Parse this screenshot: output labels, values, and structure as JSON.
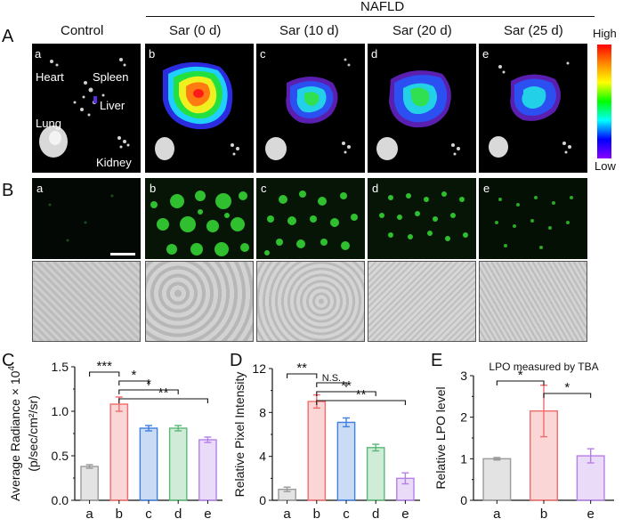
{
  "labels": {
    "panel_a": "A",
    "panel_b": "B",
    "panel_c": "C",
    "panel_d": "D",
    "panel_e": "E",
    "control": "Control",
    "nafld": "NAFLD",
    "groups": [
      "Sar (0 d)",
      "Sar (10 d)",
      "Sar (20 d)",
      "Sar (25 d)"
    ],
    "subpanels": [
      "a",
      "b",
      "c",
      "d",
      "e"
    ],
    "organs": {
      "heart": "Heart",
      "spleen": "Spleen",
      "liver": "Liver",
      "lung": "Lung",
      "kidney": "Kidney"
    },
    "scale_high": "High",
    "scale_low": "Low"
  },
  "colors": {
    "a": "#9a9a9a",
    "b": "#f26b6b",
    "c": "#3f7fe0",
    "d": "#58b878",
    "e": "#b57fe6",
    "colorbar": [
      "#ff0000",
      "#ff8800",
      "#ffff00",
      "#00ff00",
      "#00ffff",
      "#0000ff",
      "#8800ff"
    ]
  },
  "chart_data": [
    {
      "id": "C",
      "type": "bar",
      "categories": [
        "a",
        "b",
        "c",
        "d",
        "e"
      ],
      "values": [
        0.38,
        1.08,
        0.81,
        0.81,
        0.68
      ],
      "errors": [
        0.02,
        0.08,
        0.03,
        0.03,
        0.03
      ],
      "ylabel_line1": "Average Radiance × 10",
      "ylabel_sup": "4",
      "ylabel_line2": "(p/sec/cm²/sr)",
      "yticks": [
        "0.0",
        "0.5",
        "1.0",
        "1.5"
      ],
      "ylim": [
        0,
        1.5
      ],
      "significance": [
        {
          "from": "a",
          "to": "b",
          "text": "***"
        },
        {
          "from": "b",
          "to": "c",
          "text": "*"
        },
        {
          "from": "b",
          "to": "d",
          "text": "*"
        },
        {
          "from": "b",
          "to": "e",
          "text": "**"
        }
      ]
    },
    {
      "id": "D",
      "type": "bar",
      "categories": [
        "a",
        "b",
        "c",
        "d",
        "e"
      ],
      "values": [
        1.0,
        9.0,
        7.1,
        4.8,
        2.0
      ],
      "errors": [
        0.2,
        0.6,
        0.4,
        0.3,
        0.5
      ],
      "ylabel_line1": "Relative Pixel Intensity",
      "yticks": [
        "0",
        "4",
        "8",
        "12"
      ],
      "ylim": [
        0,
        12
      ],
      "significance": [
        {
          "from": "a",
          "to": "b",
          "text": "**"
        },
        {
          "from": "b",
          "to": "c",
          "text": "N.S."
        },
        {
          "from": "b",
          "to": "d",
          "text": "**"
        },
        {
          "from": "b",
          "to": "e",
          "text": "**"
        }
      ]
    },
    {
      "id": "E",
      "type": "bar",
      "title": "LPO measured by TBA",
      "categories": [
        "a",
        "b",
        "e"
      ],
      "values": [
        1.0,
        2.15,
        1.07
      ],
      "errors": [
        0.03,
        0.62,
        0.17
      ],
      "ylabel_line1": "Relative LPO level",
      "yticks": [
        "0",
        "1",
        "2",
        "3"
      ],
      "ylim": [
        0,
        3
      ],
      "significance": [
        {
          "from": "a",
          "to": "b",
          "text": "*"
        },
        {
          "from": "b",
          "to": "e",
          "text": "*"
        }
      ]
    }
  ]
}
